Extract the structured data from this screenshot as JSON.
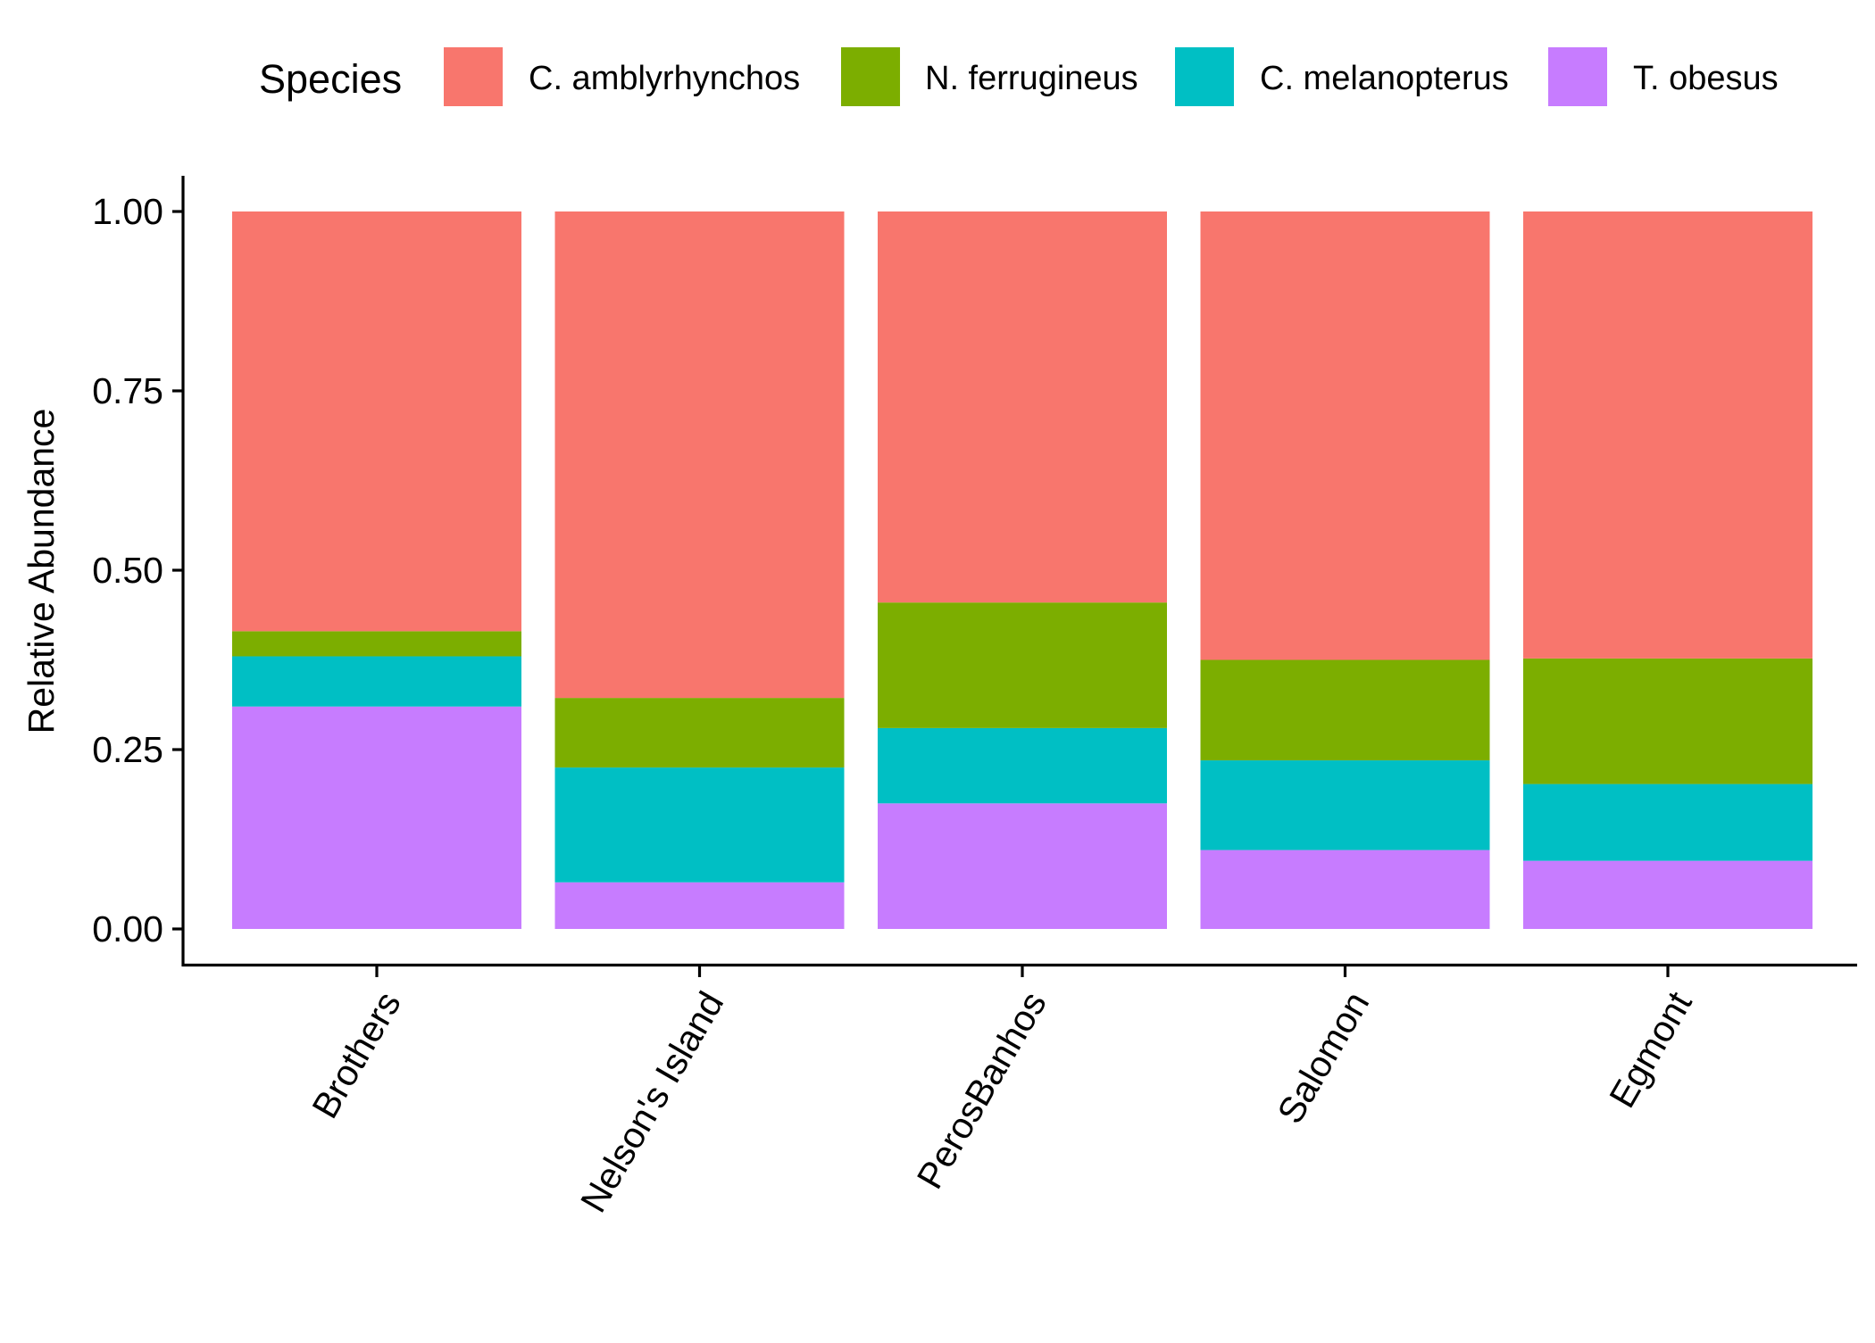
{
  "chart_data": {
    "type": "bar",
    "stacked": true,
    "title": "",
    "xlabel": "",
    "ylabel": "Relative Abundance",
    "ylim": [
      0,
      1
    ],
    "yticks": [
      0,
      0.25,
      0.5,
      0.75,
      1
    ],
    "ytick_labels": [
      "0.00",
      "0.25",
      "0.50",
      "0.75",
      "1.00"
    ],
    "grid": false,
    "legend": {
      "title": "Species",
      "position": "top"
    },
    "categories": [
      "Brothers",
      "Nelson's Island",
      "PerosBanhos",
      "Salomon",
      "Egmont"
    ],
    "series": [
      {
        "name": "T. obesus",
        "color": "#C77CFF",
        "values": [
          0.31,
          0.065,
          0.175,
          0.11,
          0.095
        ]
      },
      {
        "name": "C. melanopterus",
        "color": "#00BFC4",
        "values": [
          0.07,
          0.16,
          0.105,
          0.125,
          0.107
        ]
      },
      {
        "name": "N. ferrugineus",
        "color": "#7CAE00",
        "values": [
          0.035,
          0.097,
          0.175,
          0.14,
          0.175
        ]
      },
      {
        "name": "C. amblyrhynchos",
        "color": "#F8766D",
        "values": [
          0.585,
          0.678,
          0.545,
          0.625,
          0.623
        ]
      }
    ],
    "legend_order": [
      "C. amblyrhynchos",
      "N. ferrugineus",
      "C. melanopterus",
      "T. obesus"
    ]
  }
}
